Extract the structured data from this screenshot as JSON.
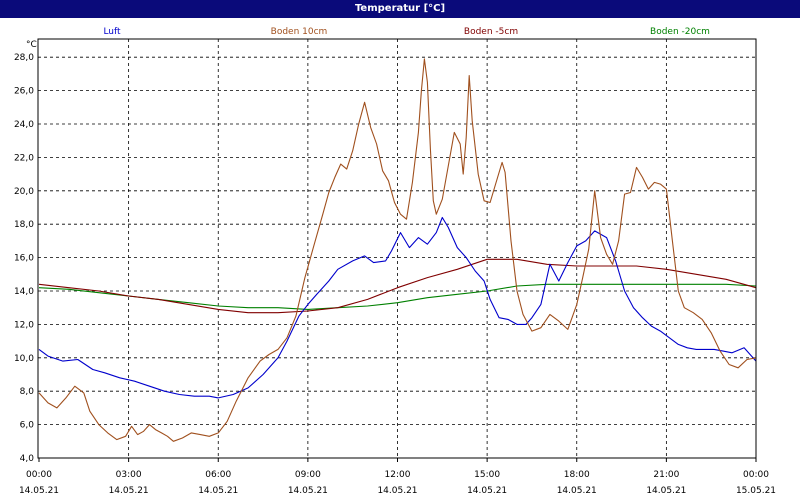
{
  "window": {
    "title": "Temperatur [°C]"
  },
  "chart_data": {
    "type": "line",
    "title": "Temperatur [°C]",
    "unit_label": "°C",
    "ylim": [
      4,
      28.6
    ],
    "yticks": [
      "4,0",
      "6,0",
      "8,0",
      "10,0",
      "12,0",
      "14,0",
      "16,0",
      "18,0",
      "20,0",
      "22,0",
      "24,0",
      "26,0",
      "28,0"
    ],
    "xlim": [
      0,
      24
    ],
    "xticks": [
      {
        "time": "00:00",
        "date": "14.05.21"
      },
      {
        "time": "03:00",
        "date": "14.05.21"
      },
      {
        "time": "06:00",
        "date": "14.05.21"
      },
      {
        "time": "09:00",
        "date": "14.05.21"
      },
      {
        "time": "12:00",
        "date": "14.05.21"
      },
      {
        "time": "15:00",
        "date": "14.05.21"
      },
      {
        "time": "18:00",
        "date": "14.05.21"
      },
      {
        "time": "21:00",
        "date": "14.05.21"
      },
      {
        "time": "00:00",
        "date": "15.05.21"
      }
    ],
    "grid": true,
    "legend_placement": "top",
    "series": [
      {
        "name": "Luft",
        "color": "#0000cc",
        "points": [
          [
            0,
            10.5
          ],
          [
            0.3,
            10.1
          ],
          [
            0.8,
            9.8
          ],
          [
            1.3,
            9.9
          ],
          [
            1.8,
            9.3
          ],
          [
            2.2,
            9.1
          ],
          [
            2.7,
            8.8
          ],
          [
            3.2,
            8.6
          ],
          [
            3.7,
            8.3
          ],
          [
            4.2,
            8
          ],
          [
            4.7,
            7.8
          ],
          [
            5.2,
            7.7
          ],
          [
            5.7,
            7.7
          ],
          [
            6,
            7.6
          ],
          [
            6.5,
            7.8
          ],
          [
            7,
            8.2
          ],
          [
            7.5,
            9
          ],
          [
            8,
            10
          ],
          [
            8.3,
            11
          ],
          [
            8.7,
            12.5
          ],
          [
            9,
            13.2
          ],
          [
            9.3,
            13.8
          ],
          [
            9.7,
            14.6
          ],
          [
            10,
            15.3
          ],
          [
            10.5,
            15.8
          ],
          [
            10.9,
            16.1
          ],
          [
            11.2,
            15.7
          ],
          [
            11.6,
            15.8
          ],
          [
            11.8,
            16.4
          ],
          [
            12.1,
            17.5
          ],
          [
            12.4,
            16.6
          ],
          [
            12.7,
            17.2
          ],
          [
            13,
            16.8
          ],
          [
            13.3,
            17.5
          ],
          [
            13.5,
            18.4
          ],
          [
            13.7,
            17.8
          ],
          [
            14,
            16.6
          ],
          [
            14.3,
            16
          ],
          [
            14.6,
            15.2
          ],
          [
            14.9,
            14.6
          ],
          [
            15.1,
            13.5
          ],
          [
            15.4,
            12.4
          ],
          [
            15.7,
            12.3
          ],
          [
            16,
            12
          ],
          [
            16.3,
            12
          ],
          [
            16.5,
            12.4
          ],
          [
            16.8,
            13.2
          ],
          [
            17.1,
            15.6
          ],
          [
            17.4,
            14.6
          ],
          [
            17.7,
            15.7
          ],
          [
            18,
            16.7
          ],
          [
            18.3,
            17
          ],
          [
            18.6,
            17.6
          ],
          [
            19,
            17.2
          ],
          [
            19.3,
            15.8
          ],
          [
            19.6,
            14
          ],
          [
            19.9,
            13
          ],
          [
            20.2,
            12.4
          ],
          [
            20.5,
            11.9
          ],
          [
            20.8,
            11.6
          ],
          [
            21.1,
            11.2
          ],
          [
            21.4,
            10.8
          ],
          [
            21.7,
            10.6
          ],
          [
            22,
            10.5
          ],
          [
            22.3,
            10.5
          ],
          [
            22.6,
            10.5
          ],
          [
            22.9,
            10.4
          ],
          [
            23.2,
            10.3
          ],
          [
            23.6,
            10.6
          ],
          [
            24,
            9.8
          ]
        ]
      },
      {
        "name": "Boden 10cm",
        "color": "#a0501e",
        "points": [
          [
            0,
            7.9
          ],
          [
            0.3,
            7.3
          ],
          [
            0.6,
            7
          ],
          [
            0.9,
            7.6
          ],
          [
            1.2,
            8.3
          ],
          [
            1.5,
            7.9
          ],
          [
            1.7,
            6.8
          ],
          [
            2,
            6
          ],
          [
            2.3,
            5.5
          ],
          [
            2.6,
            5.1
          ],
          [
            2.9,
            5.3
          ],
          [
            3.1,
            5.9
          ],
          [
            3.3,
            5.4
          ],
          [
            3.5,
            5.6
          ],
          [
            3.7,
            6
          ],
          [
            3.9,
            5.7
          ],
          [
            4.1,
            5.5
          ],
          [
            4.3,
            5.3
          ],
          [
            4.5,
            5
          ],
          [
            4.8,
            5.2
          ],
          [
            5.1,
            5.5
          ],
          [
            5.4,
            5.4
          ],
          [
            5.7,
            5.3
          ],
          [
            6,
            5.5
          ],
          [
            6.3,
            6.2
          ],
          [
            6.6,
            7.4
          ],
          [
            7,
            8.8
          ],
          [
            7.4,
            9.8
          ],
          [
            7.7,
            10.2
          ],
          [
            8,
            10.5
          ],
          [
            8.3,
            11.2
          ],
          [
            8.6,
            12.5
          ],
          [
            8.9,
            14.8
          ],
          [
            9.2,
            16.7
          ],
          [
            9.5,
            18.6
          ],
          [
            9.7,
            19.9
          ],
          [
            9.9,
            20.8
          ],
          [
            10.1,
            21.6
          ],
          [
            10.3,
            21.3
          ],
          [
            10.5,
            22.4
          ],
          [
            10.7,
            24
          ],
          [
            10.9,
            25.3
          ],
          [
            11.1,
            23.8
          ],
          [
            11.3,
            22.8
          ],
          [
            11.5,
            21.2
          ],
          [
            11.7,
            20.6
          ],
          [
            11.9,
            19.3
          ],
          [
            12.1,
            18.6
          ],
          [
            12.3,
            18.3
          ],
          [
            12.5,
            20.5
          ],
          [
            12.7,
            23.5
          ],
          [
            12.8,
            26
          ],
          [
            12.9,
            27.9
          ],
          [
            13,
            26.5
          ],
          [
            13.1,
            22.5
          ],
          [
            13.2,
            19.4
          ],
          [
            13.3,
            18.6
          ],
          [
            13.5,
            19.5
          ],
          [
            13.7,
            21.5
          ],
          [
            13.9,
            23.5
          ],
          [
            14.1,
            22.8
          ],
          [
            14.2,
            21
          ],
          [
            14.3,
            23.2
          ],
          [
            14.4,
            26.9
          ],
          [
            14.5,
            24.2
          ],
          [
            14.7,
            21
          ],
          [
            14.9,
            19.4
          ],
          [
            15.1,
            19.3
          ],
          [
            15.3,
            20.5
          ],
          [
            15.5,
            21.7
          ],
          [
            15.6,
            21.1
          ],
          [
            15.8,
            17
          ],
          [
            16,
            14
          ],
          [
            16.2,
            12.6
          ],
          [
            16.5,
            11.6
          ],
          [
            16.8,
            11.8
          ],
          [
            17.1,
            12.6
          ],
          [
            17.4,
            12.2
          ],
          [
            17.7,
            11.7
          ],
          [
            18,
            13.2
          ],
          [
            18.2,
            14.8
          ],
          [
            18.4,
            16.5
          ],
          [
            18.6,
            20
          ],
          [
            18.8,
            17.2
          ],
          [
            19,
            16.2
          ],
          [
            19.2,
            15.6
          ],
          [
            19.4,
            17
          ],
          [
            19.6,
            19.8
          ],
          [
            19.8,
            19.9
          ],
          [
            20,
            21.4
          ],
          [
            20.2,
            20.8
          ],
          [
            20.4,
            20.1
          ],
          [
            20.6,
            20.5
          ],
          [
            20.8,
            20.4
          ],
          [
            21,
            20.1
          ],
          [
            21.2,
            17
          ],
          [
            21.4,
            14
          ],
          [
            21.6,
            13
          ],
          [
            21.9,
            12.7
          ],
          [
            22.2,
            12.3
          ],
          [
            22.5,
            11.5
          ],
          [
            22.8,
            10.4
          ],
          [
            23.1,
            9.6
          ],
          [
            23.4,
            9.4
          ],
          [
            23.7,
            9.9
          ],
          [
            24,
            10
          ]
        ]
      },
      {
        "name": "Boden -5cm",
        "color": "#800000",
        "points": [
          [
            0,
            14.4
          ],
          [
            1,
            14.2
          ],
          [
            2,
            14
          ],
          [
            3,
            13.7
          ],
          [
            4,
            13.5
          ],
          [
            5,
            13.2
          ],
          [
            6,
            12.9
          ],
          [
            7,
            12.7
          ],
          [
            8,
            12.7
          ],
          [
            9,
            12.8
          ],
          [
            10,
            13
          ],
          [
            11,
            13.5
          ],
          [
            12,
            14.2
          ],
          [
            13,
            14.8
          ],
          [
            14,
            15.3
          ],
          [
            15,
            15.9
          ],
          [
            16,
            15.9
          ],
          [
            17,
            15.6
          ],
          [
            18,
            15.5
          ],
          [
            19,
            15.5
          ],
          [
            20,
            15.5
          ],
          [
            21,
            15.3
          ],
          [
            22,
            15
          ],
          [
            23,
            14.7
          ],
          [
            24,
            14.2
          ]
        ]
      },
      {
        "name": "Boden -20cm",
        "color": "#008000",
        "points": [
          [
            0,
            14.2
          ],
          [
            1,
            14.1
          ],
          [
            2,
            13.9
          ],
          [
            3,
            13.7
          ],
          [
            4,
            13.5
          ],
          [
            5,
            13.3
          ],
          [
            6,
            13.1
          ],
          [
            7,
            13
          ],
          [
            8,
            13
          ],
          [
            9,
            12.9
          ],
          [
            10,
            13
          ],
          [
            11,
            13.1
          ],
          [
            12,
            13.3
          ],
          [
            13,
            13.6
          ],
          [
            14,
            13.8
          ],
          [
            15,
            14
          ],
          [
            16,
            14.3
          ],
          [
            17,
            14.4
          ],
          [
            18,
            14.4
          ],
          [
            19,
            14.4
          ],
          [
            20,
            14.4
          ],
          [
            21,
            14.4
          ],
          [
            22,
            14.4
          ],
          [
            23,
            14.4
          ],
          [
            24,
            14.3
          ]
        ]
      }
    ]
  }
}
